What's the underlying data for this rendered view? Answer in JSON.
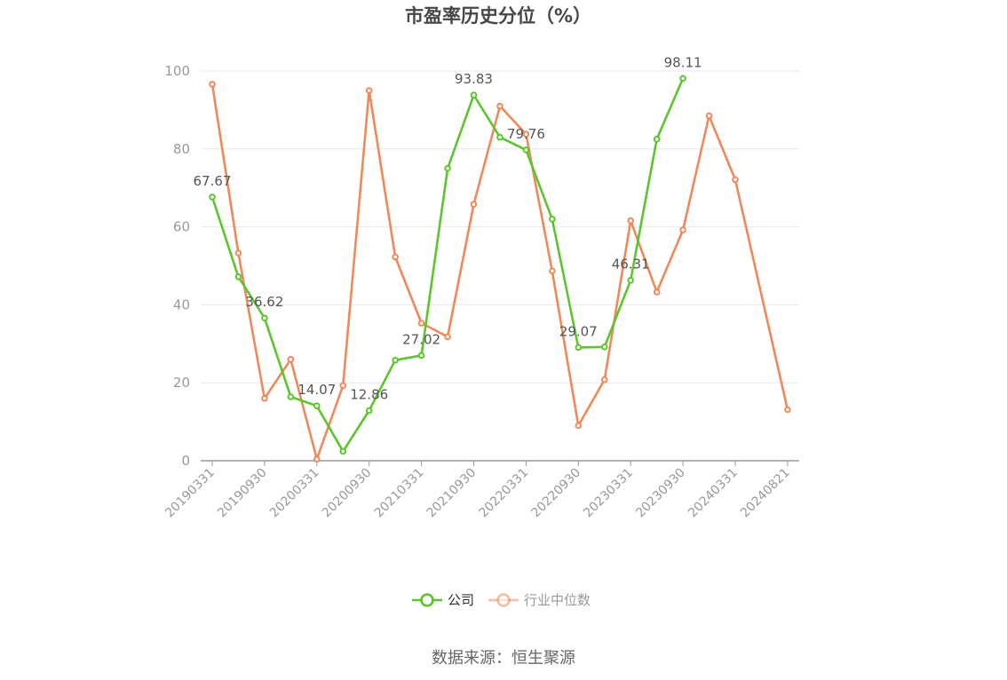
{
  "chart_data": {
    "type": "line",
    "title": "市盈率历史分位（%）",
    "source": "数据来源：恒生聚源",
    "ylim": [
      0,
      100
    ],
    "yticks": [
      0,
      20,
      40,
      60,
      80,
      100
    ],
    "xticks": [
      "20190331",
      "20190930",
      "20200331",
      "20200930",
      "20210331",
      "20210930",
      "20220331",
      "20220930",
      "20230331",
      "20230930",
      "20240331",
      "20240821"
    ],
    "x": [
      "20190331",
      "20190630",
      "20190930",
      "20191231",
      "20200331",
      "20200630",
      "20200930",
      "20201231",
      "20210331",
      "20210630",
      "20210930",
      "20211231",
      "20220331",
      "20220630",
      "20220930",
      "20221231",
      "20230331",
      "20230630",
      "20230930",
      "20231231",
      "20240331",
      "20240630",
      "20240821"
    ],
    "grid": true,
    "legend_position": "bottom",
    "series": [
      {
        "name": "公司",
        "color": "#5cc52e",
        "values": [
          67.67,
          47.2,
          36.62,
          16.4,
          14.07,
          2.4,
          12.86,
          25.8,
          27.02,
          75.0,
          93.83,
          83.0,
          79.76,
          62.0,
          29.07,
          29.2,
          46.31,
          82.5,
          98.11,
          null,
          null,
          null,
          null
        ],
        "labels": [
          67.67,
          null,
          36.62,
          null,
          14.07,
          null,
          12.86,
          null,
          27.02,
          null,
          93.83,
          null,
          79.76,
          null,
          29.07,
          null,
          46.31,
          null,
          98.11,
          null,
          null,
          null,
          null
        ]
      },
      {
        "name": "行业中位数",
        "color": "#f0895a",
        "values": [
          96.6,
          53.3,
          16.0,
          26.0,
          0.4,
          19.3,
          95.0,
          52.3,
          35.3,
          31.8,
          65.8,
          91.0,
          83.8,
          48.7,
          9.0,
          20.8,
          61.6,
          43.3,
          59.2,
          88.5,
          72.1,
          null,
          13.1
        ]
      }
    ]
  }
}
